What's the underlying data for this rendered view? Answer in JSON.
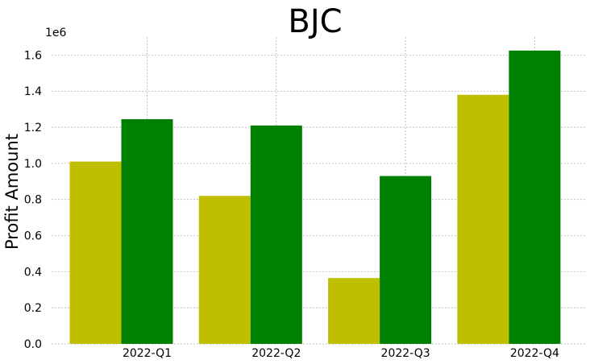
{
  "chart_data": {
    "type": "bar",
    "title": "BJC",
    "xlabel": "",
    "ylabel": "Profit Amount",
    "y_offset_label": "1e6",
    "categories": [
      "2022-Q1",
      "2022-Q2",
      "2022-Q3",
      "2022-Q4"
    ],
    "series": [
      {
        "values": [
          1010000,
          820000,
          365000,
          1380000
        ],
        "color": "#bfbf00"
      },
      {
        "values": [
          1245000,
          1210000,
          930000,
          1625000
        ],
        "color": "#008000"
      }
    ],
    "ylim": [
      0,
      1700000
    ],
    "yticks": [
      0,
      200000,
      400000,
      600000,
      800000,
      1000000,
      1200000,
      1400000,
      1600000
    ],
    "ytick_labels": [
      "0.0",
      "0.2",
      "0.4",
      "0.6",
      "0.8",
      "1.0",
      "1.2",
      "1.4",
      "1.6"
    ],
    "grid": true,
    "legend": "none"
  }
}
